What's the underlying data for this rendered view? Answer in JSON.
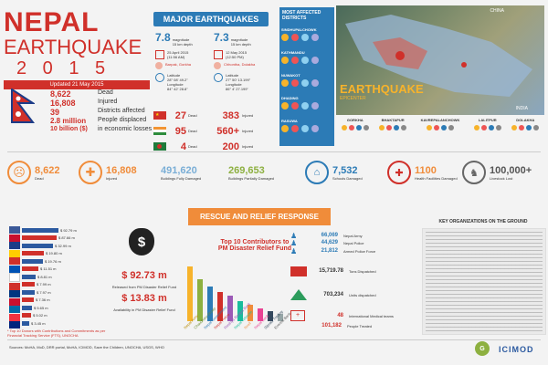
{
  "title": {
    "line1": "NEPAL",
    "line2": "EARTHQUAKE",
    "year": "2 0 1 5",
    "updated": "Updated 21 May 2015"
  },
  "nepal_stats": [
    {
      "value": "8,622",
      "label": "Dead"
    },
    {
      "value": "16,808",
      "label": "Injured"
    },
    {
      "value": "39",
      "label": "Districts affected"
    },
    {
      "value": "2.8 million",
      "label": "People displaced"
    },
    {
      "value": "10 billion ($)",
      "label": "in economic losses"
    }
  ],
  "major": {
    "heading": "MAJOR EARTHQUAKES",
    "eq1": {
      "mag": "7.8",
      "mag_label": "magnitude",
      "depth": "15 km depth",
      "date": "25 April 2015",
      "time": "(11:56 AM)",
      "place": "Barpak, Gorkha",
      "lat_label": "Latitude",
      "lat": "28° 08' 49.2\"",
      "lon_label": "Longitude",
      "lon": "84° 42' 28.8\""
    },
    "eq2": {
      "mag": "7.3",
      "mag_label": "magnitude",
      "depth": "15 km depth",
      "date": "12 May 2015",
      "time": "(12:50 PM)",
      "place": "Chhontha, Dolakha",
      "lat_label": "Latitude",
      "lat": "27° 50' 13.199\"",
      "lon_label": "Longitude",
      "lon": "86° 4' 27.199\""
    }
  },
  "countries": [
    {
      "dead": "27",
      "dead_label": "Dead",
      "inj": "383",
      "inj_label": "Injured"
    },
    {
      "dead": "95",
      "dead_label": "Dead",
      "inj": "560+",
      "inj_label": "Injured"
    },
    {
      "dead": "4",
      "dead_label": "Dead",
      "inj": "200",
      "inj_label": "Injured"
    }
  ],
  "affected": {
    "heading": "MOST AFFECTED DISTRICTS",
    "districts": [
      "SINDHUPALCHOWK",
      "KATHMANDU",
      "NUWAKOT",
      "DHADING",
      "RASUWA"
    ],
    "map_label_big": "EARTHQUAKE",
    "map_label_small": "EPICENTER",
    "map_country_top": "CHINA",
    "map_country_bottom": "INDIA",
    "bottom_districts": [
      "GORKHA",
      "BHAKTAPUR",
      "KAVREPALANCHOWK",
      "LALITPUR",
      "DOLAKHA"
    ]
  },
  "impact": [
    {
      "value": "8,622",
      "label": "Dead"
    },
    {
      "value": "16,808",
      "label": "Injured"
    },
    {
      "value": "491,620",
      "label": "Buildings Fully Damaged"
    },
    {
      "value": "269,653",
      "label": "Buildings Partially Damaged"
    },
    {
      "value": "7,532",
      "label": "Schools Damaged"
    },
    {
      "value": "1100",
      "label": "Health Facilities Damaged"
    },
    {
      "value": "100,000+",
      "label": "Livestock Lost"
    }
  ],
  "rescue": {
    "heading": "RESCUE AND RELIEF RESPONSE"
  },
  "funds": {
    "released": "$ 92.73 m",
    "released_label": "Released from PM Disaster Relief Fund",
    "available": "$ 13.83 m",
    "available_label": "Availability in PM Disaster Relief Fund",
    "note": "* Top 10 Donors with Contributions and Commitments as per Financial Tracking Service (FTS), UNOCHA"
  },
  "donor_bars": [
    "$ 92.79 m",
    "$ 87.66 m",
    "$ 32.99 m",
    "$ 19.80 m",
    "$ 19.76 m",
    "$ 11.51 m",
    "$ 8.81 m",
    "$ 7.99 m",
    "$ 7.97 m",
    "$ 7.36 m",
    "$ 5.65 m",
    "$ 5.02 m",
    "$ 3.45 m"
  ],
  "top10": {
    "heading1": "Top 10 Contributors to",
    "heading2": "PM Disaster Relief Fund",
    "names": [
      "Nepal Army",
      "Chaudhary Group",
      "Nepal Government",
      "Nepal Police",
      "Rastriya Banijya Bank",
      "Nepal Telecom",
      "Ncell",
      "Nepal Bank",
      "Sipradi Trading",
      "Everest Bank"
    ]
  },
  "response": [
    {
      "value": "66,069",
      "label": "Nepal Army"
    },
    {
      "value": "44,629",
      "label": "Nepal Police"
    },
    {
      "value": "21,812",
      "label": "Armed Police Force"
    },
    {
      "value": "15,719.78",
      "label": "Tons Dispatched"
    },
    {
      "value": "703,234",
      "label": "Units dispatched"
    },
    {
      "value": "48",
      "label": "International Medical teams"
    },
    {
      "value": "101,182",
      "label": "People Treated"
    }
  ],
  "orgs": {
    "heading": "KEY ORGANIZATIONS ON THE GROUND"
  },
  "footer": {
    "sources": "Sources: MoHA, MoD, DRR portal, MoHA, ICIMOD, Save the Children, UNOCHA, USGS, WHO",
    "logo": "ICIMOD"
  }
}
